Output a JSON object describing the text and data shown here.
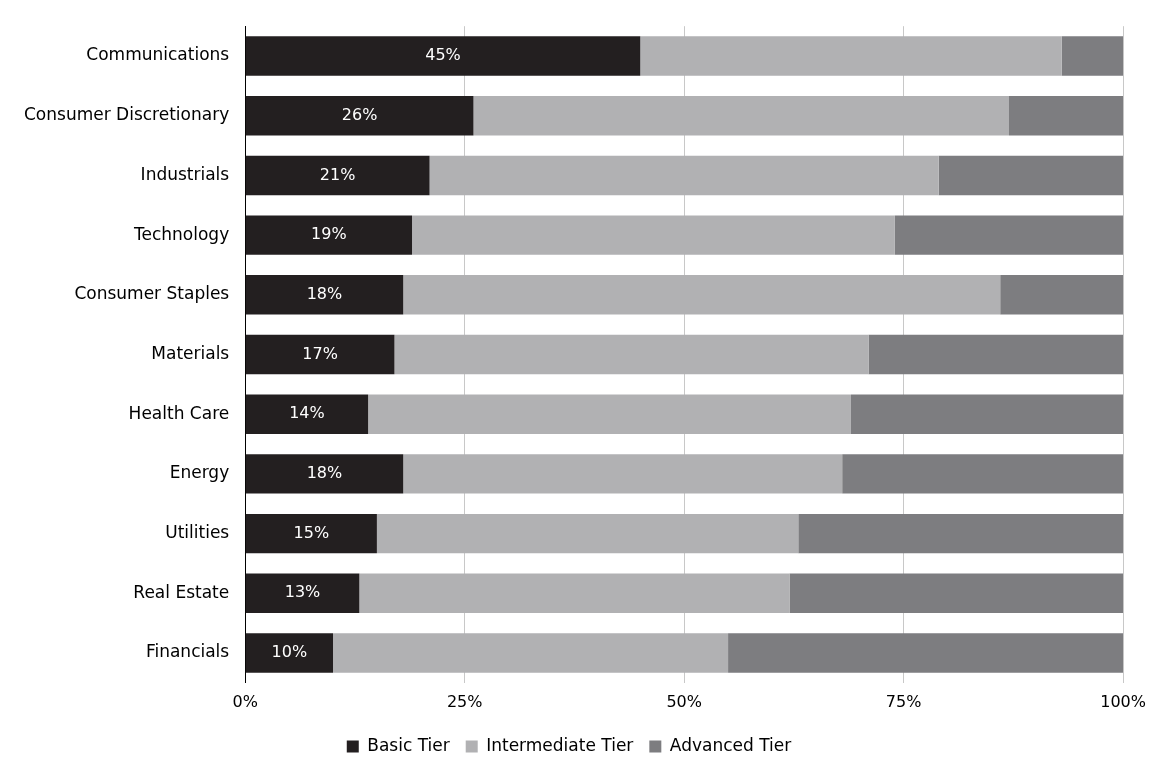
{
  "chart_data": {
    "type": "bar",
    "orientation": "horizontal",
    "stacked": true,
    "grid": "x",
    "legend": "bottom",
    "categories": [
      "Communications",
      "Consumer Discretionary",
      "Industrials",
      "Technology",
      "Consumer Staples",
      "Materials",
      "Health Care",
      "Energy",
      "Utilities",
      "Real Estate",
      "Financials"
    ],
    "xlim": [
      0,
      100
    ],
    "xticks": [
      {
        "value": 0,
        "label": "0%"
      },
      {
        "value": 25,
        "label": "25%"
      },
      {
        "value": 50,
        "label": "50%"
      },
      {
        "value": 75,
        "label": "75%"
      },
      {
        "value": 100,
        "label": "100%"
      }
    ],
    "series": [
      {
        "name": "Basic Tier",
        "color": "#231f20",
        "values": [
          45,
          26,
          21,
          19,
          18,
          17,
          14,
          18,
          15,
          13,
          10
        ],
        "value_labels": [
          "45%",
          "26%",
          "21%",
          "19%",
          "18%",
          "17%",
          "14%",
          "18%",
          "15%",
          "13%",
          "10%"
        ]
      },
      {
        "name": "Intermediate Tier",
        "color": "#b1b1b3",
        "values": [
          48,
          61,
          58,
          55,
          68,
          54,
          55,
          50,
          48,
          49,
          45
        ]
      },
      {
        "name": "Advanced Tier",
        "color": "#7d7d80",
        "values": [
          7,
          13,
          21,
          26,
          14,
          29,
          31,
          32,
          37,
          38,
          45
        ]
      }
    ]
  }
}
